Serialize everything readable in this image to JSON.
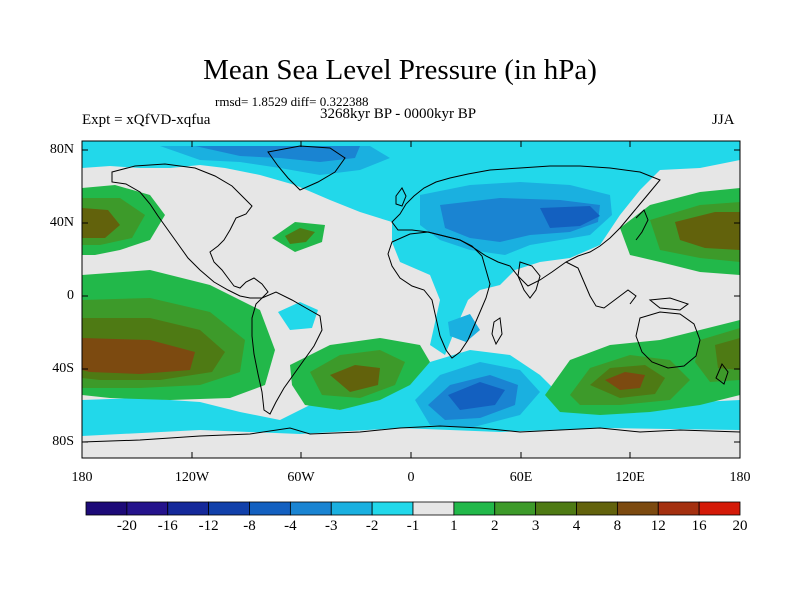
{
  "title": "Mean Sea Level Pressure (in hPa)",
  "stats": "rmsd= 1.8529 diff= 0.322388",
  "experiment": "Expt = xQfVD-xqfua",
  "period": "3268kyr BP - 0000kyr BP",
  "season": "JJA",
  "axes": {
    "y_ticks": [
      "80N",
      "40N",
      "0",
      "40S",
      "80S"
    ],
    "x_ticks": [
      "180",
      "120W",
      "60W",
      "0",
      "60E",
      "120E",
      "180"
    ]
  },
  "colorbar": {
    "labels": [
      "-20",
      "-16",
      "-12",
      "-8",
      "-4",
      "-3",
      "-2",
      "-1",
      "1",
      "2",
      "3",
      "4",
      "8",
      "12",
      "16",
      "20"
    ],
    "colors": [
      "#1d0a78",
      "#25138c",
      "#15299a",
      "#1140aa",
      "#1360c0",
      "#1a84d2",
      "#1ab0e0",
      "#22d8ea",
      "#e6e6e6",
      "#22b84a",
      "#3d9a2a",
      "#4e7a14",
      "#62620c",
      "#7c4a10",
      "#a43010",
      "#d41a08"
    ]
  },
  "colors": {
    "neutral": "#e6e6e6",
    "coast": "#000000"
  }
}
